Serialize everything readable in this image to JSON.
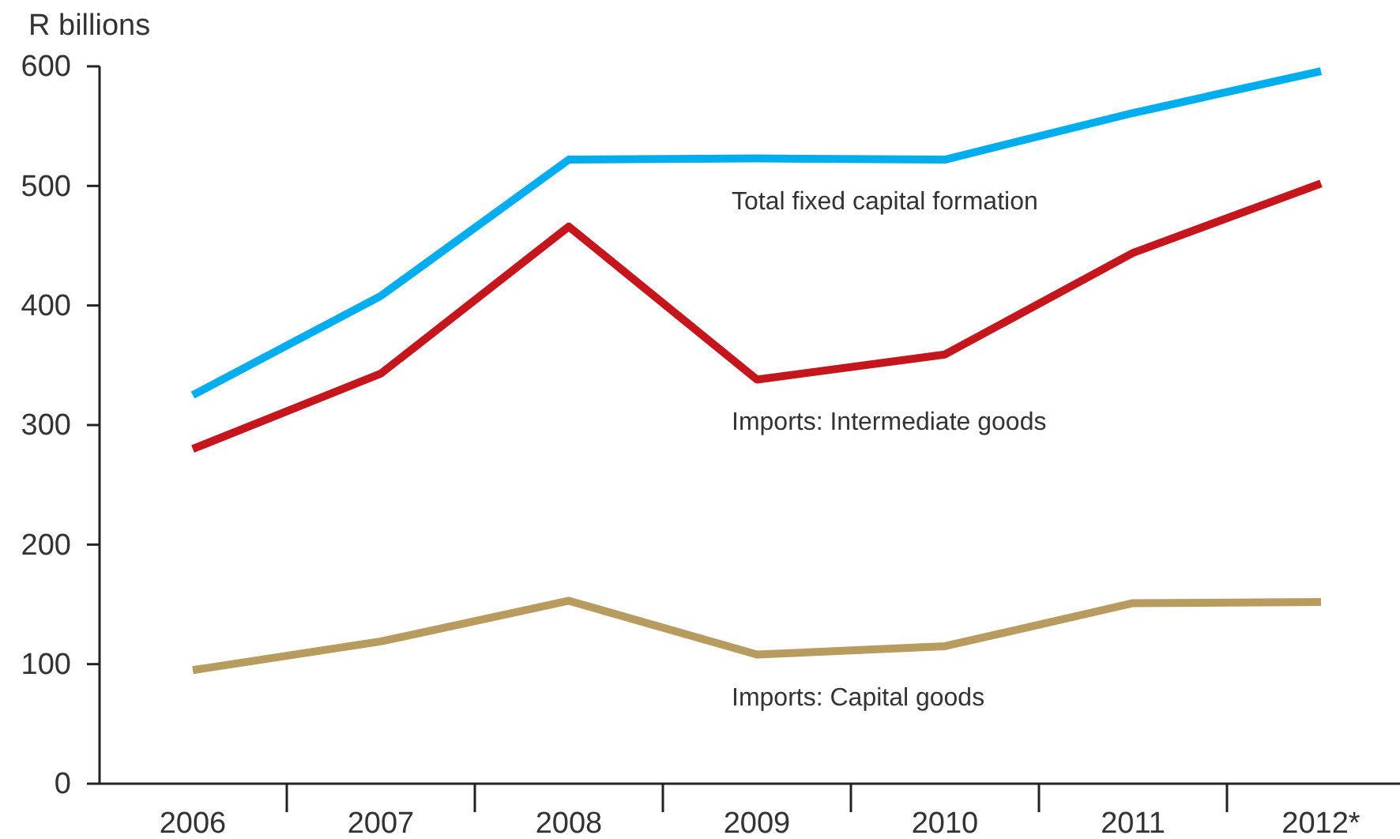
{
  "chart_data": {
    "type": "line",
    "ylabel": "R billions",
    "categories": [
      "2006",
      "2007",
      "2008",
      "2009",
      "2010",
      "2011",
      "2012*"
    ],
    "series": [
      {
        "name": "Total fixed capital formation",
        "color": "#00aeef",
        "values": [
          325,
          408,
          522,
          523,
          522,
          561,
          596
        ]
      },
      {
        "name": "Imports: Intermediate goods",
        "color": "#c4161c",
        "values": [
          280,
          343,
          466,
          338,
          359,
          444,
          502
        ]
      },
      {
        "name": "Imports: Capital goods",
        "color": "#b89b5e",
        "values": [
          95,
          119,
          153,
          108,
          115,
          151,
          152
        ]
      }
    ],
    "ylim": [
      0,
      600
    ],
    "yticks": [
      0,
      100,
      200,
      300,
      400,
      500,
      600
    ],
    "grid": false,
    "legend": false,
    "marker": "none",
    "line_style": "solid"
  }
}
